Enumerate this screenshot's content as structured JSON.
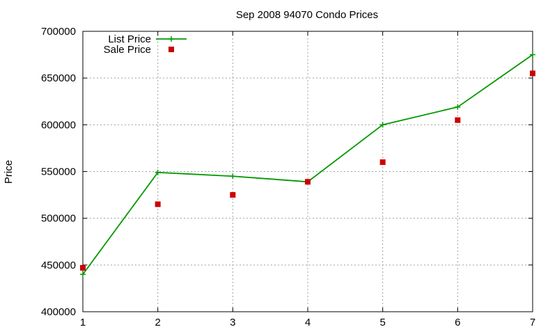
{
  "chart_data": {
    "type": "line",
    "title": "Sep 2008 94070 Condo Prices",
    "xlabel": "",
    "ylabel": "Price",
    "x": [
      1,
      2,
      3,
      4,
      5,
      6,
      7
    ],
    "xlim": [
      1,
      7
    ],
    "ylim": [
      400000,
      700000
    ],
    "xticks": [
      "1",
      "2",
      "3",
      "4",
      "5",
      "6",
      "7"
    ],
    "yticks": [
      "400000",
      "450000",
      "500000",
      "550000",
      "600000",
      "650000",
      "700000"
    ],
    "grid": true,
    "legend_position": "top-left",
    "series": [
      {
        "name": "List Price",
        "style": "line-with-plus-markers",
        "color": "#009900",
        "values": [
          440000,
          549000,
          545000,
          539000,
          600000,
          619000,
          675000
        ]
      },
      {
        "name": "Sale Price",
        "style": "square-markers",
        "color": "#cc0000",
        "values": [
          447000,
          515000,
          525000,
          539000,
          560000,
          605000,
          655000
        ]
      }
    ]
  }
}
